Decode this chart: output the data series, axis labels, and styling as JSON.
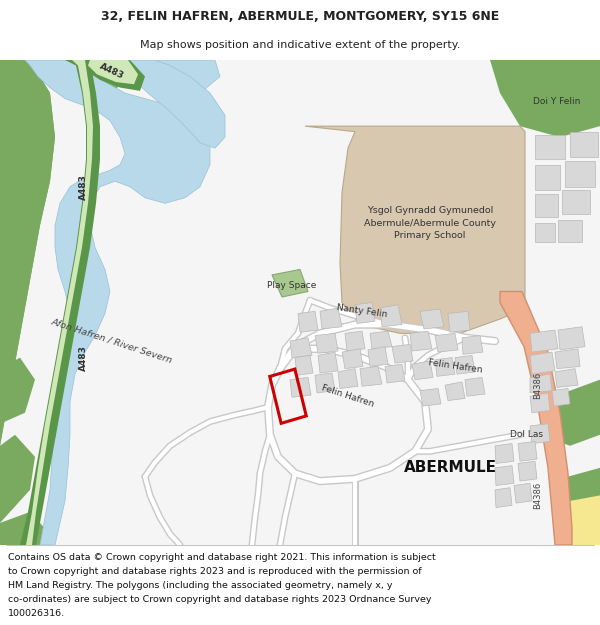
{
  "title_line1": "32, FELIN HAFREN, ABERMULE, MONTGOMERY, SY15 6NE",
  "title_line2": "Map shows position and indicative extent of the property.",
  "footer_lines": [
    "Contains OS data © Crown copyright and database right 2021. This information is subject",
    "to Crown copyright and database rights 2023 and is reproduced with the permission of",
    "HM Land Registry. The polygons (including the associated geometry, namely x, y",
    "co-ordinates) are subject to Crown copyright and database rights 2023 Ordnance Survey",
    "100026316."
  ],
  "bg_color": "#ffffff",
  "map_bg": "#f5f5f5",
  "river_color": "#b8d9ea",
  "road_b4386_color": "#f0b090",
  "road_b4386_outline": "#d09070",
  "green_dark": "#7aaa60",
  "green_light": "#c0d8a0",
  "school_color": "#d8c8b0",
  "building_color": "#d8d8d8",
  "building_outline": "#b8b8b8",
  "road_outline": "#c8c8c8",
  "road_fill": "#ffffff",
  "highlight_red": "#cc0000",
  "text_dark": "#222222",
  "text_road": "#444444",
  "yellow_area": "#f5e890"
}
